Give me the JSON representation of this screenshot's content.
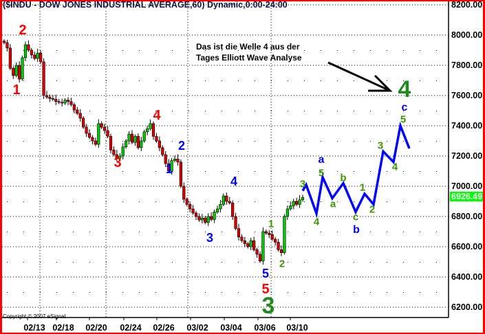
{
  "title": "($INDU - DOW JONES INDUSTRIAL AVERAGE,60) Dynamic,0:00-24:00",
  "copyright": "Copyright © 2007 eSignal.",
  "annotation": [
    "Das ist die Welle 4 aus der",
    "Tages Elliott Wave Analyse"
  ],
  "current_price": "6926.49",
  "colors": {
    "up": "#00cc00",
    "down": "#e00000",
    "projection": "#0000ff",
    "frame": "#ff0000",
    "price_box": "#00ff00"
  },
  "chart_data": {
    "type": "candlestick",
    "title": "($INDU - DOW JONES INDUSTRIAL AVERAGE,60) Dynamic,0:00-24:00",
    "ylim": [
      6100,
      8200
    ],
    "yticks": [
      "8200.00",
      "8000.00",
      "7800.00",
      "7600.00",
      "7400.00",
      "7200.00",
      "7000.00",
      "6800.00",
      "6600.00",
      "6400.00",
      "6200.00"
    ],
    "xticks": [
      "02/13",
      "02/18",
      "02/20",
      "02/24",
      "02/26",
      "03/02",
      "03/04",
      "03/06",
      "03/10"
    ],
    "grid": true,
    "close": [
      7950,
      7914,
      7780,
      7732,
      7800,
      7709,
      7850,
      7936,
      7900,
      7868,
      7845,
      7880,
      7823,
      7600,
      7590,
      7580,
      7575,
      7560,
      7555,
      7550,
      7570,
      7560,
      7540,
      7505,
      7482,
      7450,
      7391,
      7350,
      7323,
      7300,
      7277,
      7414,
      7390,
      7368,
      7330,
      7240,
      7209,
      7186,
      7200,
      7260,
      7300,
      7345,
      7290,
      7330,
      7255,
      7300,
      7360,
      7380,
      7414,
      7330,
      7300,
      7255,
      7209,
      7150,
      7100,
      7170,
      7180,
      7160,
      7000,
      6914,
      6880,
      6850,
      6823,
      6800,
      6777,
      6790,
      6760,
      6800,
      6780,
      6830,
      6850,
      6880,
      6936,
      6900,
      6890,
      6800,
      6720,
      6664,
      6640,
      6620,
      6600,
      6640,
      6580,
      6550,
      6505,
      6700,
      6690,
      6680,
      6650,
      6630,
      6580,
      6560,
      6800,
      6850,
      6870,
      6900,
      6880,
      6910,
      6926
    ],
    "projection": [
      6970,
      7010,
      6820,
      7060,
      6920,
      7020,
      6830,
      6950,
      6880,
      7230,
      7160,
      7400,
      7250
    ]
  },
  "wave_labels": [
    {
      "text": "2",
      "style": "red"
    },
    {
      "text": "1",
      "style": "red"
    },
    {
      "text": "3",
      "style": "red"
    },
    {
      "text": "4",
      "style": "red"
    },
    {
      "text": "2",
      "style": "blue"
    },
    {
      "text": "1",
      "style": "blue"
    },
    {
      "text": "4",
      "style": "blue"
    },
    {
      "text": "3",
      "style": "blue"
    },
    {
      "text": "1",
      "style": "green-s"
    },
    {
      "text": "2",
      "style": "green-s"
    },
    {
      "text": "5",
      "style": "blue"
    },
    {
      "text": "5",
      "style": "red"
    },
    {
      "text": "3",
      "style": "green-b"
    },
    {
      "text": "3",
      "style": "green-s"
    },
    {
      "text": "4",
      "style": "green-s"
    },
    {
      "text": "a",
      "style": "blue-s"
    },
    {
      "text": "5",
      "style": "green-s"
    },
    {
      "text": "a",
      "style": "green-s"
    },
    {
      "text": "b",
      "style": "green-s"
    },
    {
      "text": "c",
      "style": "green-s"
    },
    {
      "text": "b",
      "style": "blue-s"
    },
    {
      "text": "1",
      "style": "green-s"
    },
    {
      "text": "2",
      "style": "green-s"
    },
    {
      "text": "3",
      "style": "green-s"
    },
    {
      "text": "4",
      "style": "green-s"
    },
    {
      "text": "5",
      "style": "green-s"
    },
    {
      "text": "c",
      "style": "blue-s"
    },
    {
      "text": "4",
      "style": "green-b"
    }
  ]
}
